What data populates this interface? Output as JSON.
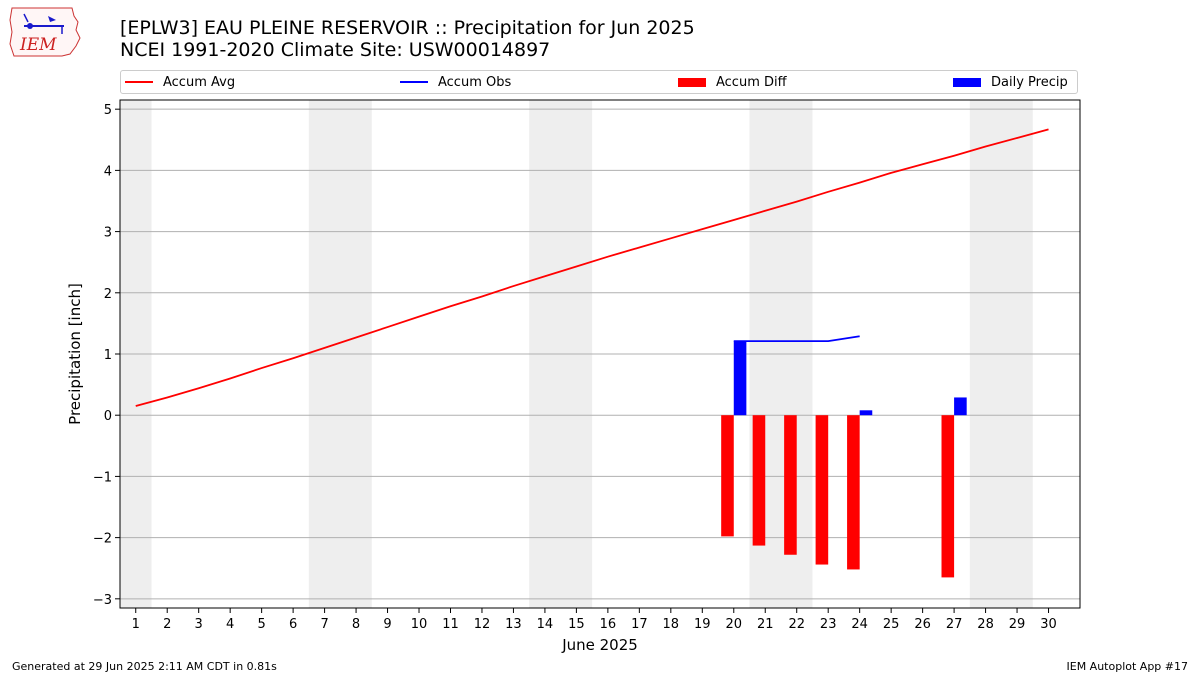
{
  "logo": {
    "text": "IEM"
  },
  "title": {
    "line1": "[EPLW3] EAU PLEINE RESERVOIR :: Precipitation for Jun 2025",
    "line2": "NCEI 1991-2020 Climate Site: USW00014897"
  },
  "legend": [
    {
      "label": "Accum Avg",
      "kind": "line",
      "color": "#ff0000"
    },
    {
      "label": "Accum Obs",
      "kind": "line",
      "color": "#0000ff"
    },
    {
      "label": "Accum Diff",
      "kind": "bar",
      "color": "#ff0000"
    },
    {
      "label": "Daily Precip",
      "kind": "bar",
      "color": "#0000ff"
    }
  ],
  "footer": {
    "left": "Generated at 29 Jun 2025 2:11 AM CDT in 0.81s",
    "right": "IEM Autoplot App #17"
  },
  "chart_data": {
    "type": "bar",
    "xlabel": "June 2025",
    "ylabel": "Precipitation [inch]",
    "xlim": [
      0.5,
      31
    ],
    "ylim": [
      -3.15,
      5.15
    ],
    "x_ticks": [
      1,
      2,
      3,
      4,
      5,
      6,
      7,
      8,
      9,
      10,
      11,
      12,
      13,
      14,
      15,
      16,
      17,
      18,
      19,
      20,
      21,
      22,
      23,
      24,
      25,
      26,
      27,
      28,
      29,
      30
    ],
    "y_ticks": [
      -3,
      -2,
      -1,
      0,
      1,
      2,
      3,
      4,
      5
    ],
    "y_tick_labels": [
      "−3",
      "−2",
      "−1",
      "0",
      "1",
      "2",
      "3",
      "4",
      "5"
    ],
    "grid": "horizontal",
    "legend_placement": "top",
    "weekend_shading": [
      [
        0.5,
        1.5
      ],
      [
        6.5,
        8.5
      ],
      [
        13.5,
        15.5
      ],
      [
        20.5,
        22.5
      ],
      [
        27.5,
        29.5
      ]
    ],
    "shade_color": "#eeeeee",
    "series": [
      {
        "name": "Accum Avg",
        "kind": "line",
        "color": "#ff0000",
        "x": [
          1,
          2,
          3,
          4,
          5,
          6,
          7,
          8,
          9,
          10,
          11,
          12,
          13,
          14,
          15,
          16,
          17,
          18,
          19,
          20,
          21,
          22,
          23,
          24,
          25,
          26,
          27,
          28,
          29,
          30
        ],
        "values": [
          0.15,
          0.29,
          0.44,
          0.6,
          0.77,
          0.93,
          1.1,
          1.27,
          1.44,
          1.61,
          1.78,
          1.94,
          2.11,
          2.27,
          2.43,
          2.59,
          2.74,
          2.89,
          3.04,
          3.19,
          3.34,
          3.49,
          3.65,
          3.8,
          3.96,
          4.1,
          4.24,
          4.39,
          4.53,
          4.67
        ]
      },
      {
        "name": "Accum Obs",
        "kind": "line",
        "color": "#0000ff",
        "x": [
          20,
          21,
          22,
          23,
          24
        ],
        "values": [
          1.21,
          1.21,
          1.21,
          1.21,
          1.29
        ]
      },
      {
        "name": "Accum Diff",
        "kind": "bar",
        "color": "#ff0000",
        "x": [
          20,
          21,
          22,
          23,
          24,
          27
        ],
        "values": [
          -1.98,
          -2.13,
          -2.28,
          -2.44,
          -2.52,
          -2.65
        ]
      },
      {
        "name": "Daily Precip",
        "kind": "bar",
        "color": "#0000ff",
        "x": [
          20,
          24,
          27
        ],
        "values": [
          1.21,
          0.08,
          0.29
        ]
      }
    ]
  }
}
